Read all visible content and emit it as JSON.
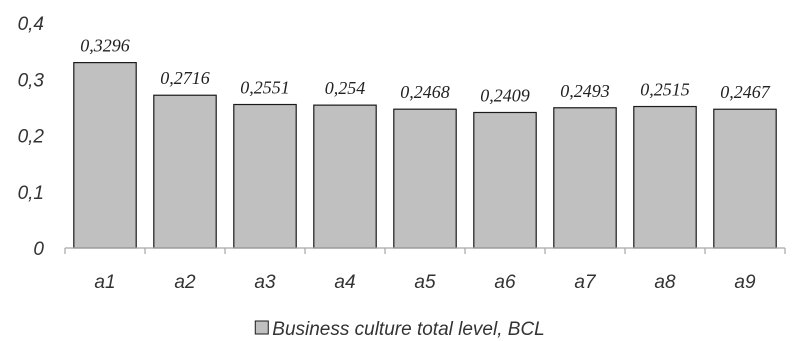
{
  "chart_data": {
    "type": "bar",
    "categories": [
      "a1",
      "a2",
      "a3",
      "a4",
      "a5",
      "a6",
      "a7",
      "a8",
      "a9"
    ],
    "series": [
      {
        "name": "Business culture total level, BCL",
        "values": [
          0.3296,
          0.2716,
          0.2551,
          0.254,
          0.2468,
          0.2409,
          0.2493,
          0.2515,
          0.2467
        ]
      }
    ],
    "data_labels": [
      "0,3296",
      "0,2716",
      "0,2551",
      "0,254",
      "0,2468",
      "0,2409",
      "0,2493",
      "0,2515",
      "0,2467"
    ],
    "yticks": [
      0,
      0.1,
      0.2,
      0.3,
      0.4
    ],
    "ytick_labels": [
      "0",
      "0,1",
      "0,2",
      "0,3",
      "0,4"
    ],
    "ylim": [
      0,
      0.4
    ],
    "grid": false,
    "legend": {
      "position": "bottom",
      "label": "Business culture total level, BCL"
    },
    "colors": {
      "bar_fill": "#c0c0c0",
      "bar_stroke": "#1a1a1a",
      "axis": "#a6a6a6",
      "text": "#333333"
    }
  }
}
